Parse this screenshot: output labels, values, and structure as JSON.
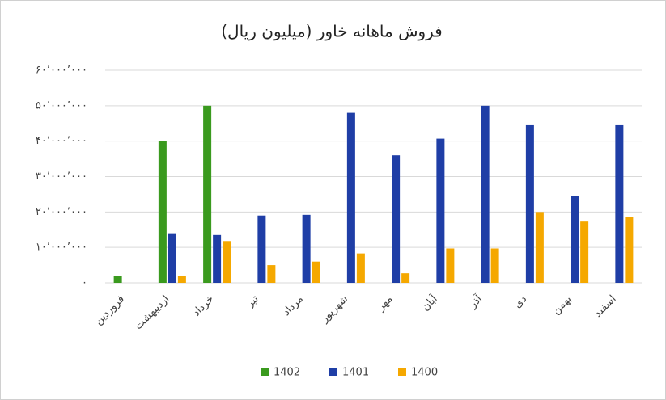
{
  "chart_data": {
    "type": "bar",
    "title": "فروش ماهانه خاور (میلیون ریال)",
    "categories": [
      "فروردین",
      "اردیبهشت",
      "خرداد",
      "تیر",
      "مرداد",
      "شهریور",
      "مهر",
      "آبان",
      "آذر",
      "دی",
      "بهمن",
      "اسفند"
    ],
    "series": [
      {
        "name": "1402",
        "color": "#3a9a1e",
        "values": [
          2000000,
          40000000,
          50000000,
          null,
          null,
          null,
          null,
          null,
          null,
          null,
          null,
          null
        ]
      },
      {
        "name": "1401",
        "color": "#1f3ea6",
        "values": [
          null,
          14000000,
          13500000,
          19000000,
          19200000,
          48000000,
          36000000,
          40700000,
          50000000,
          44500000,
          24500000,
          44500000
        ]
      },
      {
        "name": "1400",
        "color": "#f5a800",
        "values": [
          null,
          2000000,
          11800000,
          5000000,
          6000000,
          8300000,
          2700000,
          9700000,
          9700000,
          20000000,
          17300000,
          18700000
        ]
      }
    ],
    "ylim": [
      0,
      60000000
    ],
    "yticks": [
      {
        "value": 0,
        "label": "۰"
      },
      {
        "value": 10000000,
        "label": "۱۰٬۰۰۰٬۰۰۰"
      },
      {
        "value": 20000000,
        "label": "۲۰٬۰۰۰٬۰۰۰"
      },
      {
        "value": 30000000,
        "label": "۳۰٬۰۰۰٬۰۰۰"
      },
      {
        "value": 40000000,
        "label": "۴۰٬۰۰۰٬۰۰۰"
      },
      {
        "value": 50000000,
        "label": "۵۰٬۰۰۰٬۰۰۰"
      },
      {
        "value": 60000000,
        "label": "۶۰٬۰۰۰٬۰۰۰"
      }
    ],
    "grid": true,
    "legend": "bottom"
  }
}
